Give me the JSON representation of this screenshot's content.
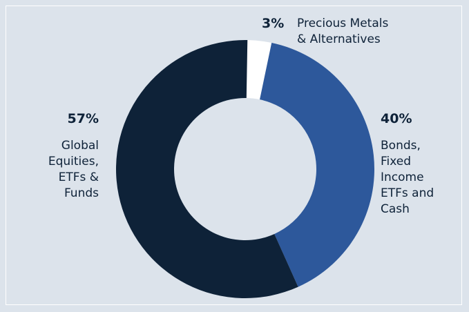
{
  "chart_data": {
    "type": "pie",
    "variant": "donut",
    "categories": [
      "Precious Metals & Alternatives",
      "Bonds, Fixed Income ETFs and Cash",
      "Global Equities, ETFs & Funds"
    ],
    "values": [
      3,
      40,
      57
    ],
    "colors": [
      "#ffffff",
      "#2d589b",
      "#0e2238"
    ],
    "labels": {
      "metals": {
        "pct": "3%",
        "lines": [
          "Precious Metals",
          "& Alternatives"
        ]
      },
      "bonds": {
        "pct": "40%",
        "lines": [
          "Bonds,",
          "Fixed",
          "Income",
          "ETFs and",
          "Cash"
        ]
      },
      "equities": {
        "pct": "57%",
        "lines": [
          "Global",
          "Equities,",
          "ETFs &",
          "Funds"
        ]
      }
    }
  },
  "colors": {
    "background": "#dce3eb",
    "text": "#0e2238"
  }
}
